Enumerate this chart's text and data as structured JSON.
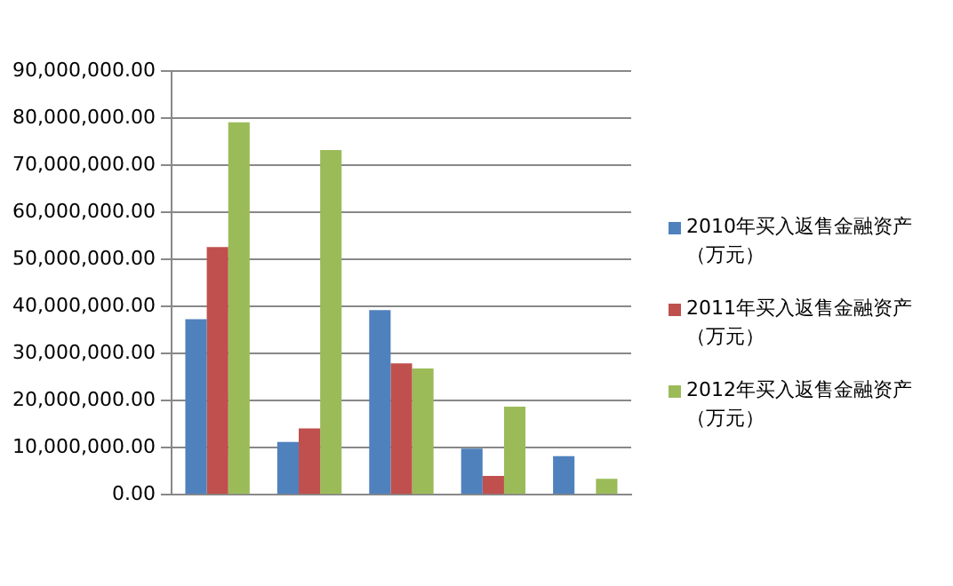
{
  "chart_data": {
    "type": "bar",
    "categories": [
      null,
      null,
      null,
      null,
      null
    ],
    "series": [
      {
        "name": "2010年买入返售金融资产（万元）",
        "color": "#4f81bd",
        "values": [
          37300000,
          11200000,
          39200000,
          9800000,
          8200000
        ]
      },
      {
        "name": "2011年买入返售金融资产（万元）",
        "color": "#c0504d",
        "values": [
          52600000,
          14100000,
          27900000,
          4000000,
          0
        ]
      },
      {
        "name": "2012年买入返售金融资产（万元）",
        "color": "#9bbb59",
        "values": [
          79100000,
          73200000,
          26800000,
          18700000,
          3400000
        ]
      }
    ],
    "ylim": [
      0,
      90000000
    ],
    "yticks": [
      {
        "value": 0,
        "label": "0.00"
      },
      {
        "value": 10000000,
        "label": "10,000,000.00"
      },
      {
        "value": 20000000,
        "label": "20,000,000.00"
      },
      {
        "value": 30000000,
        "label": "30,000,000.00"
      },
      {
        "value": 40000000,
        "label": "40,000,000.00"
      },
      {
        "value": 50000000,
        "label": "50,000,000.00"
      },
      {
        "value": 60000000,
        "label": "60,000,000.00"
      },
      {
        "value": 70000000,
        "label": "70,000,000.00"
      },
      {
        "value": 80000000,
        "label": "80,000,000.00"
      },
      {
        "value": 90000000,
        "label": "90,000,000.00"
      }
    ],
    "grid": "y",
    "legend": "right"
  }
}
